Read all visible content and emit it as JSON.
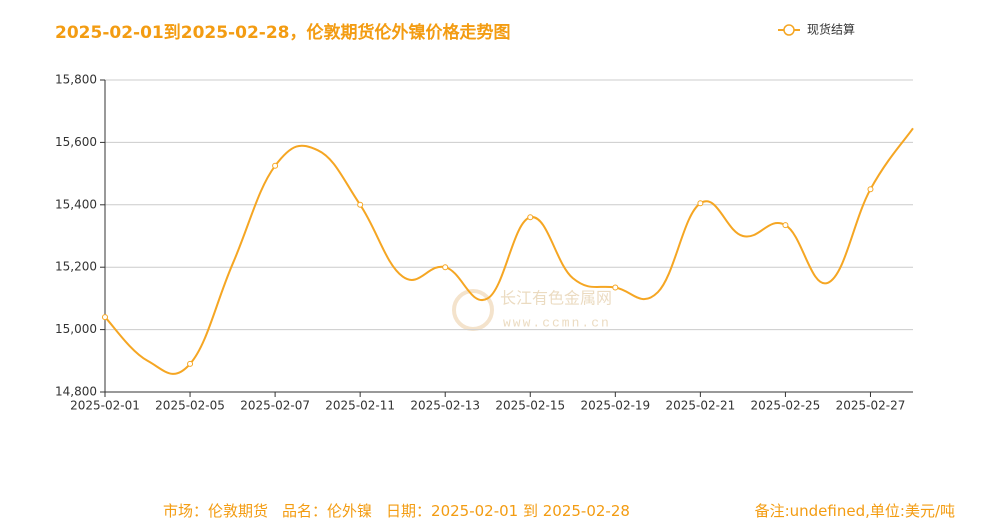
{
  "chart_data": {
    "type": "line",
    "title": "2025-02-01到2025-02-28，伦敦期货伦外镍价格走势图",
    "categories": [
      "2025-02-01",
      null,
      "2025-02-05",
      null,
      "2025-02-07",
      null,
      "2025-02-11",
      null,
      "2025-02-13",
      null,
      "2025-02-15",
      null,
      "2025-02-19",
      null,
      "2025-02-21",
      null,
      "2025-02-25",
      null,
      "2025-02-27",
      null
    ],
    "series": [
      {
        "name": "现货结算",
        "color": "#f5a623",
        "values": [
          15040,
          14900,
          14890,
          15210,
          15525,
          15575,
          15400,
          15170,
          15200,
          15100,
          15360,
          15165,
          15135,
          15120,
          15405,
          15300,
          15335,
          15150,
          15450,
          15645
        ]
      }
    ],
    "ylim": [
      14800,
      15800
    ],
    "yticks": [
      {
        "value": 14800,
        "label": "14,800"
      },
      {
        "value": 15000,
        "label": "15,000"
      },
      {
        "value": 15200,
        "label": "15,200"
      },
      {
        "value": 15400,
        "label": "15,400"
      },
      {
        "value": 15600,
        "label": "15,600"
      },
      {
        "value": 15800,
        "label": "15,800"
      }
    ],
    "grid": true,
    "legend": "top-right"
  },
  "watermark": {
    "name": "长江有色金属网",
    "url": "www.ccmn.cn"
  },
  "footer": {
    "market": "市场：伦敦期货",
    "product": "品名：伦外镍",
    "date": "日期：2025-02-01 到 2025-02-28",
    "note": "备注:undefined,单位:美元/吨"
  }
}
